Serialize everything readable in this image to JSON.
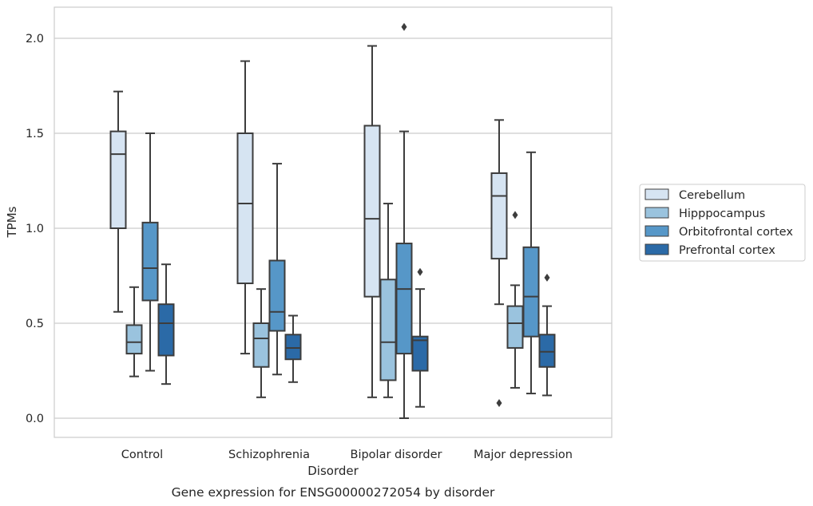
{
  "chart_data": {
    "type": "boxplot",
    "title": "Gene expression for ENSG00000272054 by disorder",
    "xlabel": "Disorder",
    "ylabel": "TPMs",
    "ylim": [
      -0.1,
      2.17
    ],
    "yticks": [
      "0.0",
      "0.5",
      "1.0",
      "1.5",
      "2.0"
    ],
    "grid": true,
    "legend_position": "right",
    "categories": [
      "Control",
      "Schizophrenia",
      "Bipolar disorder",
      "Major depression"
    ],
    "series": [
      {
        "name": "Cerebellum",
        "color": "#d6e4f2",
        "boxes": [
          {
            "whislo": 0.56,
            "q1": 1.0,
            "med": 1.39,
            "q3": 1.51,
            "whishi": 1.72,
            "fliers": []
          },
          {
            "whislo": 0.34,
            "q1": 0.71,
            "med": 1.13,
            "q3": 1.5,
            "whishi": 1.88,
            "fliers": []
          },
          {
            "whislo": 0.11,
            "q1": 0.64,
            "med": 1.05,
            "q3": 1.54,
            "whishi": 1.96,
            "fliers": []
          },
          {
            "whislo": 0.6,
            "q1": 0.84,
            "med": 1.17,
            "q3": 1.29,
            "whishi": 1.57,
            "fliers": [
              0.08
            ]
          }
        ]
      },
      {
        "name": "Hipppocampus",
        "color": "#9ac3de",
        "boxes": [
          {
            "whislo": 0.22,
            "q1": 0.34,
            "med": 0.4,
            "q3": 0.49,
            "whishi": 0.69,
            "fliers": []
          },
          {
            "whislo": 0.11,
            "q1": 0.27,
            "med": 0.42,
            "q3": 0.5,
            "whishi": 0.68,
            "fliers": []
          },
          {
            "whislo": 0.11,
            "q1": 0.2,
            "med": 0.4,
            "q3": 0.73,
            "whishi": 1.13,
            "fliers": []
          },
          {
            "whislo": 0.16,
            "q1": 0.37,
            "med": 0.5,
            "q3": 0.59,
            "whishi": 0.7,
            "fliers": [
              1.07
            ]
          }
        ]
      },
      {
        "name": "Orbitofrontal cortex",
        "color": "#5697c8",
        "boxes": [
          {
            "whislo": 0.25,
            "q1": 0.62,
            "med": 0.79,
            "q3": 1.03,
            "whishi": 1.5,
            "fliers": []
          },
          {
            "whislo": 0.23,
            "q1": 0.46,
            "med": 0.56,
            "q3": 0.83,
            "whishi": 1.34,
            "fliers": []
          },
          {
            "whislo": 0.0,
            "q1": 0.34,
            "med": 0.68,
            "q3": 0.92,
            "whishi": 1.51,
            "fliers": [
              2.06
            ]
          },
          {
            "whislo": 0.13,
            "q1": 0.43,
            "med": 0.64,
            "q3": 0.9,
            "whishi": 1.4,
            "fliers": []
          }
        ]
      },
      {
        "name": "Prefrontal cortex",
        "color": "#2b6aa7",
        "boxes": [
          {
            "whislo": 0.18,
            "q1": 0.33,
            "med": 0.5,
            "q3": 0.6,
            "whishi": 0.81,
            "fliers": []
          },
          {
            "whislo": 0.19,
            "q1": 0.31,
            "med": 0.37,
            "q3": 0.44,
            "whishi": 0.54,
            "fliers": []
          },
          {
            "whislo": 0.06,
            "q1": 0.25,
            "med": 0.41,
            "q3": 0.43,
            "whishi": 0.68,
            "fliers": [
              0.77
            ]
          },
          {
            "whislo": 0.12,
            "q1": 0.27,
            "med": 0.35,
            "q3": 0.44,
            "whishi": 0.59,
            "fliers": [
              0.74
            ]
          }
        ]
      }
    ]
  }
}
